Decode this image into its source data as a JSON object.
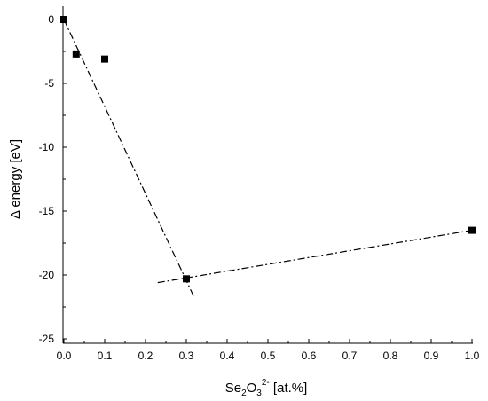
{
  "chart_data": {
    "type": "scatter",
    "xlabel": {
      "base": "Se",
      "sub1": "2",
      "mid": "O",
      "sub2": "3",
      "sup": "2-",
      "rest": " [at.%]"
    },
    "ylabel": "Δ energy [eV]",
    "xlim": [
      0.0,
      1.0
    ],
    "ylim": [
      -25,
      0
    ],
    "x_ticks": [
      "0.0",
      "0.1",
      "0.2",
      "0.3",
      "0.4",
      "0.5",
      "0.6",
      "0.7",
      "0.8",
      "0.9",
      "1.0"
    ],
    "y_ticks": [
      "0",
      "-5",
      "-10",
      "-15",
      "-20",
      "-25"
    ],
    "grid": false,
    "points": [
      {
        "x": 0.0,
        "y": 0.0
      },
      {
        "x": 0.03,
        "y": -2.7
      },
      {
        "x": 0.1,
        "y": -3.1
      },
      {
        "x": 0.3,
        "y": -20.3
      },
      {
        "x": 1.0,
        "y": -16.5
      }
    ],
    "fit_lines": [
      {
        "style": "dash-dot",
        "x": [
          0.0,
          0.32
        ],
        "y": [
          0.0,
          -21.8
        ]
      },
      {
        "style": "dash-dot",
        "x": [
          0.23,
          1.0
        ],
        "y": [
          -20.6,
          -16.5
        ]
      }
    ],
    "marker_color": "#000000",
    "line_color": "#000000"
  }
}
